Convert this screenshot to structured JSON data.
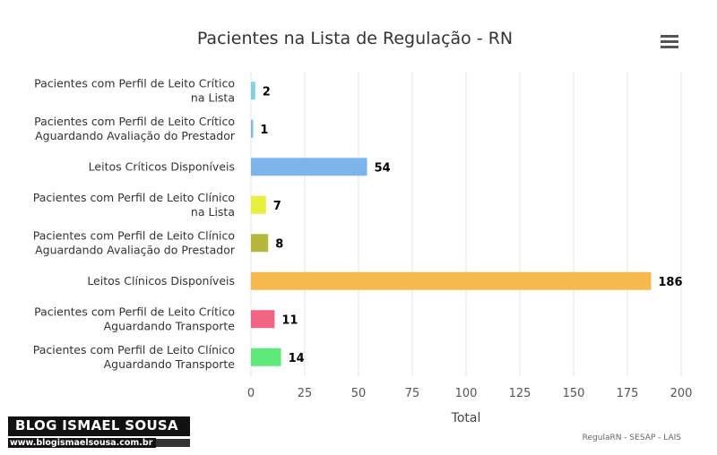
{
  "chart_data": {
    "type": "bar",
    "orientation": "horizontal",
    "title": "Pacientes na Lista de Regulação - RN",
    "xlabel": "Total",
    "categories": [
      [
        "Pacientes com Perfil de Leito Crítico",
        "na Lista"
      ],
      [
        "Pacientes com Perfil de Leito Crítico",
        "Aguardando Avaliação do Prestador"
      ],
      [
        "Leitos Críticos Disponíveis"
      ],
      [
        "Pacientes com Perfil de Leito Clínico",
        "na Lista"
      ],
      [
        "Pacientes com Perfil de Leito Clínico",
        "Aguardando Avaliação do Prestador"
      ],
      [
        "Leitos Clínicos Disponíveis"
      ],
      [
        "Pacientes com Perfil de Leito Crítico",
        "Aguardando Transporte"
      ],
      [
        "Pacientes com Perfil de Leito Clínico",
        "Aguardando Transporte"
      ]
    ],
    "values": [
      2,
      1,
      54,
      7,
      8,
      186,
      11,
      14
    ],
    "colors": [
      "#7cd3e6",
      "#7cb5ec",
      "#7cb5ec",
      "#e8f03e",
      "#b5b83a",
      "#f7b84d",
      "#f26582",
      "#5ee878"
    ],
    "xlim": [
      0,
      200
    ],
    "xticks": [
      0,
      25,
      50,
      75,
      100,
      125,
      150,
      175,
      200
    ],
    "grid": true,
    "credit": "RegulaRN - SESAP - LAIS"
  },
  "menu_icon": "hamburger-menu-icon",
  "watermark": {
    "name": "BLOG ISMAEL SOUSA",
    "url": "www.blogismaelsousa.com.br"
  }
}
